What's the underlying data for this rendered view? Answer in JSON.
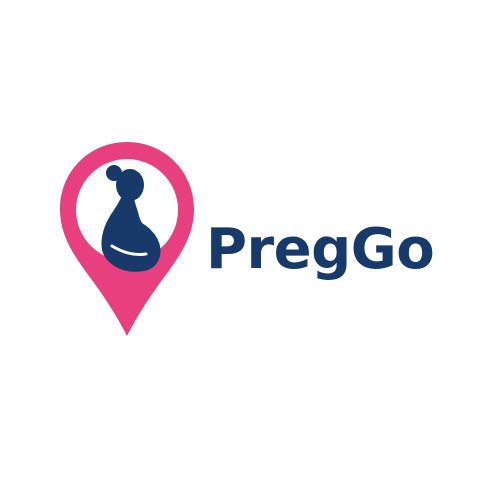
{
  "brand": {
    "name": "PregGo",
    "colors": {
      "pin": "#e8407e",
      "navy": "#173a6a",
      "background": "#ffffff"
    }
  },
  "logo": {
    "icon": "map-pin-pregnant-woman-icon"
  }
}
